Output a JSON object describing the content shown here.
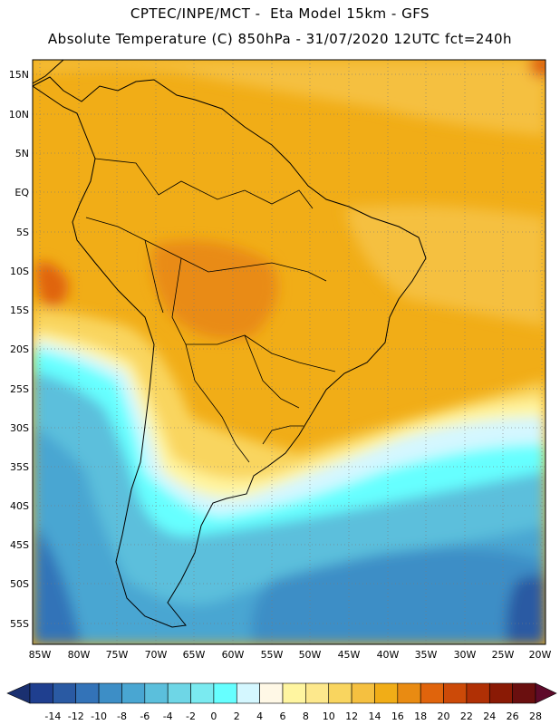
{
  "header": {
    "line1": "CPTEC/INPE/MCT -  Eta Model 15km - GFS",
    "line2": "Absolute Temperature (C) 850hPa - 31/07/2020 12UTC fct=240h"
  },
  "map": {
    "lat_labels": [
      "15N",
      "10N",
      "5N",
      "EQ",
      "5S",
      "10S",
      "15S",
      "20S",
      "25S",
      "30S",
      "35S",
      "40S",
      "45S",
      "50S",
      "55S"
    ],
    "lon_labels": [
      "85W",
      "80W",
      "75W",
      "70W",
      "65W",
      "60W",
      "55W",
      "50W",
      "45W",
      "40W",
      "35W",
      "30W",
      "25W",
      "20W"
    ]
  },
  "colorbar": {
    "labels": [
      "-14",
      "-12",
      "-10",
      "-8",
      "-6",
      "-4",
      "-2",
      "0",
      "2",
      "4",
      "6",
      "8",
      "10",
      "12",
      "14",
      "16",
      "18",
      "20",
      "22",
      "24",
      "26",
      "28"
    ],
    "colors": [
      "#1f3f8f",
      "#2a5aa3",
      "#3373b8",
      "#3d8ec6",
      "#49a6d2",
      "#5bbfdc",
      "#6ed6e6",
      "#7aeaf0",
      "#66ffff",
      "#d4f7ff",
      "#fff8e6",
      "#fff5a0",
      "#fde88c",
      "#f9d55f",
      "#f5c040",
      "#f1ad17",
      "#e98b12",
      "#e0640c",
      "#cc4a08",
      "#b03005",
      "#8a1a05",
      "#6a0f0f"
    ],
    "low_end_color": "#1a3070",
    "high_end_color": "#5e0a2a"
  }
}
